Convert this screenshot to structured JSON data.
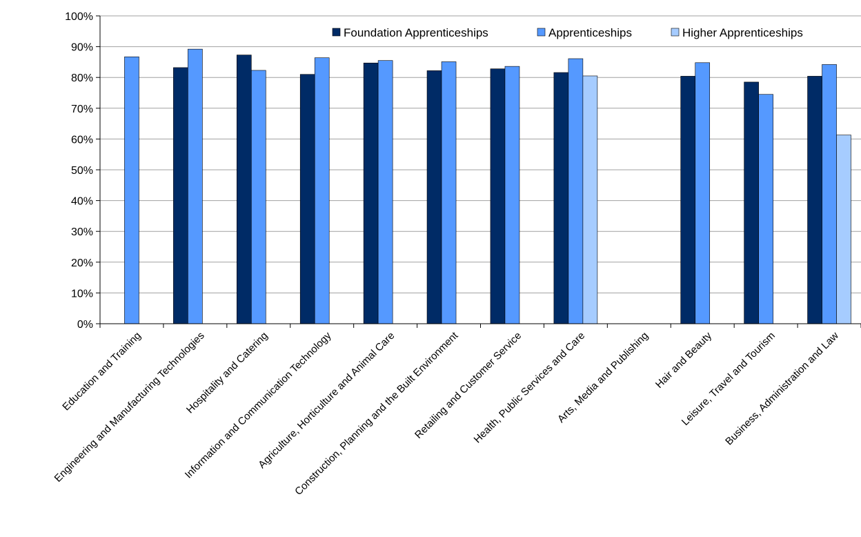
{
  "chart_data": {
    "type": "bar",
    "title": "",
    "xlabel": "",
    "ylabel": "",
    "ylim": [
      0,
      100
    ],
    "y_ticks": [
      "0%",
      "10%",
      "20%",
      "30%",
      "40%",
      "50%",
      "60%",
      "70%",
      "80%",
      "90%",
      "100%"
    ],
    "grid": true,
    "legend_position": "top-right",
    "categories": [
      "Education and Training",
      "Engineering and Manufacturing Technologies",
      "Hospitality and Catering",
      "Information and Communication Technology",
      "Agriculture, Horticulture and Animal Care",
      "Construction, Planning and the Built Environment",
      "Retailing and Customer Service",
      "Health, Public Services and Care",
      "Arts, Media and Publishing",
      "Hair and Beauty",
      "Leisure, Travel and Tourism",
      "Business, Administration and Law"
    ],
    "series": [
      {
        "name": "Foundation Apprenticeships",
        "color": "#002b66",
        "values": [
          null,
          83.2,
          87.3,
          81.0,
          84.7,
          82.2,
          82.8,
          81.6,
          null,
          80.4,
          78.5,
          80.4
        ]
      },
      {
        "name": "Apprenticeships",
        "color": "#5599ff",
        "values": [
          86.7,
          89.2,
          82.3,
          86.4,
          85.5,
          85.1,
          83.6,
          86.1,
          null,
          84.8,
          74.5,
          84.2
        ]
      },
      {
        "name": "Higher Apprenticeships",
        "color": "#a6ccff",
        "values": [
          null,
          null,
          null,
          null,
          null,
          null,
          null,
          80.5,
          null,
          null,
          null,
          61.3
        ]
      }
    ]
  }
}
